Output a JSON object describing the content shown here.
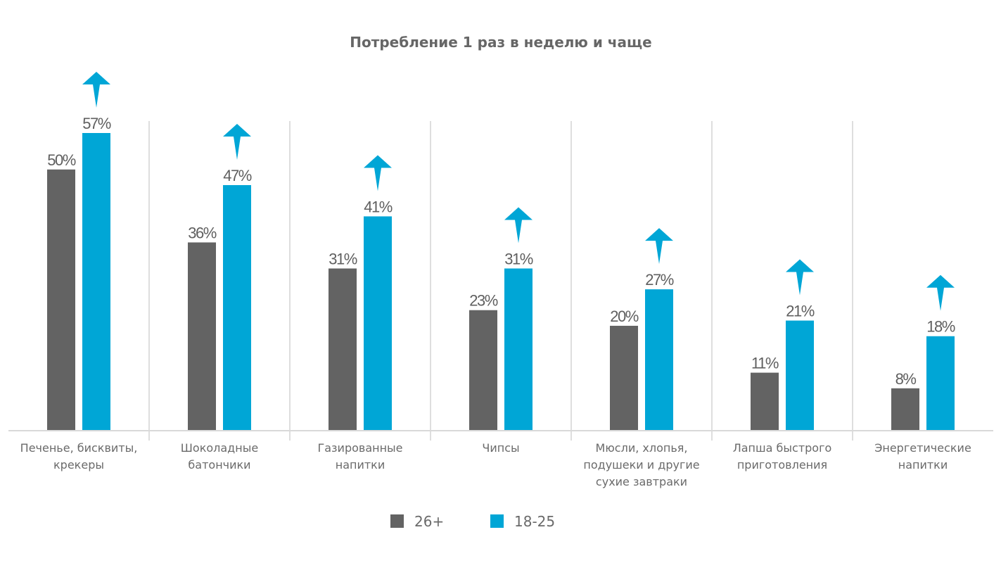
{
  "chart_data": {
    "type": "bar",
    "title": "Потребление 1 раз в неделю и чаще",
    "xlabel": "",
    "ylabel": "",
    "ylim": [
      0,
      57
    ],
    "grid": false,
    "legend_position": "bottom-center",
    "value_suffix": "%",
    "categories": [
      [
        "Печенье, бисквиты,",
        "крекеры"
      ],
      [
        "Шоколадные",
        "батончики"
      ],
      [
        "Газированные",
        "напитки"
      ],
      [
        "Чипсы"
      ],
      [
        "Мюсли, хлопья,",
        "подушеки и другие",
        "сухие завтраки"
      ],
      [
        "Лапша быстрого",
        "приготовления"
      ],
      [
        "Энергетические",
        "напитки"
      ]
    ],
    "series": [
      {
        "name": "26+",
        "color": "#636363",
        "values": [
          50,
          36,
          31,
          23,
          20,
          11,
          8
        ]
      },
      {
        "name": "18-25",
        "color": "#00a6d6",
        "values": [
          57,
          47,
          41,
          31,
          27,
          21,
          18
        ],
        "annotation": "up-arrow"
      }
    ],
    "colors": {
      "axis": "#d9d9d9",
      "divider": "#bdbdbd",
      "arrow": "#00a6d6"
    }
  }
}
